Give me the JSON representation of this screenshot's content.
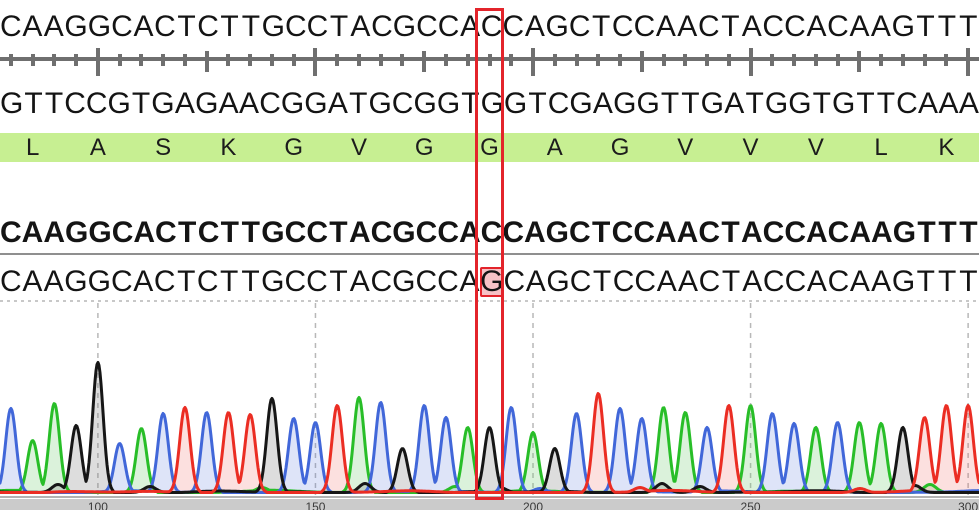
{
  "viewer": {
    "top_strand": "CAAGGCACTCTTGCCTACGCCACCAGCTCCAACTACCACAAGTTT",
    "bottom_strand": "GTTCCGTGAGAACGGATGCGGTGGTCGAGGTTGATGGTGTTCAAA",
    "reference": "CAAGGCACTCTTGCCTACGCCACCAGCTCCAACTACCACAAGTTT",
    "read": "CAAGGCACTCTTGCCTACGCCAGCAGCTCCAACTACCACAAGTTT",
    "translation": [
      "L",
      "A",
      "S",
      "K",
      "G",
      "V",
      "G",
      "G",
      "A",
      "G",
      "V",
      "V",
      "V",
      "L",
      "K"
    ],
    "mutation": {
      "index": 22,
      "reference_base": "C",
      "read_base": "G"
    },
    "colors": {
      "accent_red": "#e3242b",
      "mismatch_fill": "#f6c2c6",
      "translation_band": "#c7ef92",
      "trace_A": "#28be28",
      "trace_C": "#4167d9",
      "trace_G": "#161616",
      "trace_T": "#eb2d23"
    }
  },
  "chart_data": {
    "type": "line",
    "title": "Sanger chromatogram trace",
    "sequence": "CAAGGCACTCTTGCCTACGCCAGCAGCTCCAACTACCACAAGTTT",
    "peak_heights": [
      84,
      52,
      89,
      67,
      130,
      49,
      64,
      79,
      85,
      80,
      80,
      78,
      94,
      74,
      70,
      87,
      95,
      90,
      44,
      87,
      75,
      65,
      65,
      85,
      60,
      44,
      79,
      99,
      84,
      74,
      85,
      80,
      65,
      87,
      87,
      79,
      69,
      65,
      70,
      70,
      69,
      65,
      75,
      87,
      87
    ],
    "base_colors": {
      "A": "#28be28",
      "C": "#4167d9",
      "G": "#161616",
      "T": "#eb2d23"
    },
    "x_axis": {
      "tick_labels": [
        "100",
        "150",
        "200",
        "250",
        "300"
      ],
      "tick_base_indices": [
        4,
        14,
        24,
        34,
        44
      ]
    },
    "layout": {
      "grid": "dashed-vertical-at-major-ticks",
      "minor_tick_every": 1,
      "medium_tick_every": 5,
      "major_tick_every": 10,
      "legend": "none"
    }
  }
}
